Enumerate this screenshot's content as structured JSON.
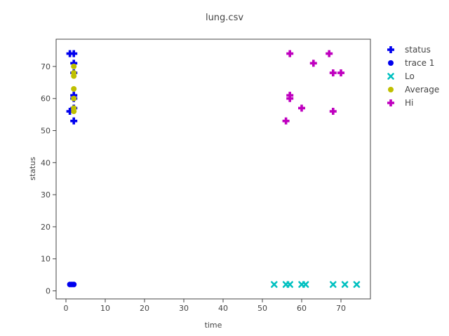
{
  "chart_data": {
    "type": "scatter",
    "title": "lung.csv",
    "xlabel": "time",
    "ylabel": "status",
    "xlim": [
      -2.5,
      77.5
    ],
    "ylim": [
      -2.5,
      78.5
    ],
    "x_ticks": [
      0,
      10,
      20,
      30,
      40,
      50,
      60,
      70
    ],
    "y_ticks": [
      0,
      10,
      20,
      30,
      40,
      50,
      60,
      70
    ],
    "grid": false,
    "legend_position": "top-right",
    "series": [
      {
        "name": "status",
        "marker": "cross",
        "color": "#0000ee",
        "points": [
          [
            1,
            56
          ],
          [
            1,
            74
          ],
          [
            2,
            74
          ],
          [
            2,
            71
          ],
          [
            2,
            68
          ],
          [
            2,
            61
          ],
          [
            2,
            60
          ],
          [
            2,
            57
          ],
          [
            2,
            53
          ]
        ]
      },
      {
        "name": "trace 1",
        "marker": "circle",
        "color": "#0000ee",
        "points": [
          [
            1,
            2
          ],
          [
            1.5,
            2
          ],
          [
            2,
            2
          ]
        ]
      },
      {
        "name": "Lo",
        "marker": "x",
        "color": "#00c0c0",
        "points": [
          [
            53,
            2
          ],
          [
            56,
            2
          ],
          [
            57,
            2
          ],
          [
            60,
            2
          ],
          [
            61,
            2
          ],
          [
            68,
            2
          ],
          [
            71,
            2
          ],
          [
            74,
            2
          ]
        ]
      },
      {
        "name": "Average",
        "marker": "circle",
        "color": "#bfbf00",
        "points": [
          [
            2,
            70
          ],
          [
            2,
            68
          ],
          [
            2,
            67
          ],
          [
            2,
            63
          ],
          [
            2,
            60
          ],
          [
            2,
            57
          ],
          [
            2,
            56
          ]
        ]
      },
      {
        "name": "Hi",
        "marker": "cross",
        "color": "#bf00bf",
        "points": [
          [
            56,
            53
          ],
          [
            57,
            74
          ],
          [
            57,
            61
          ],
          [
            57,
            60
          ],
          [
            60,
            57
          ],
          [
            63,
            71
          ],
          [
            67,
            74
          ],
          [
            68,
            68
          ],
          [
            68,
            56
          ],
          [
            70,
            68
          ]
        ]
      }
    ]
  }
}
